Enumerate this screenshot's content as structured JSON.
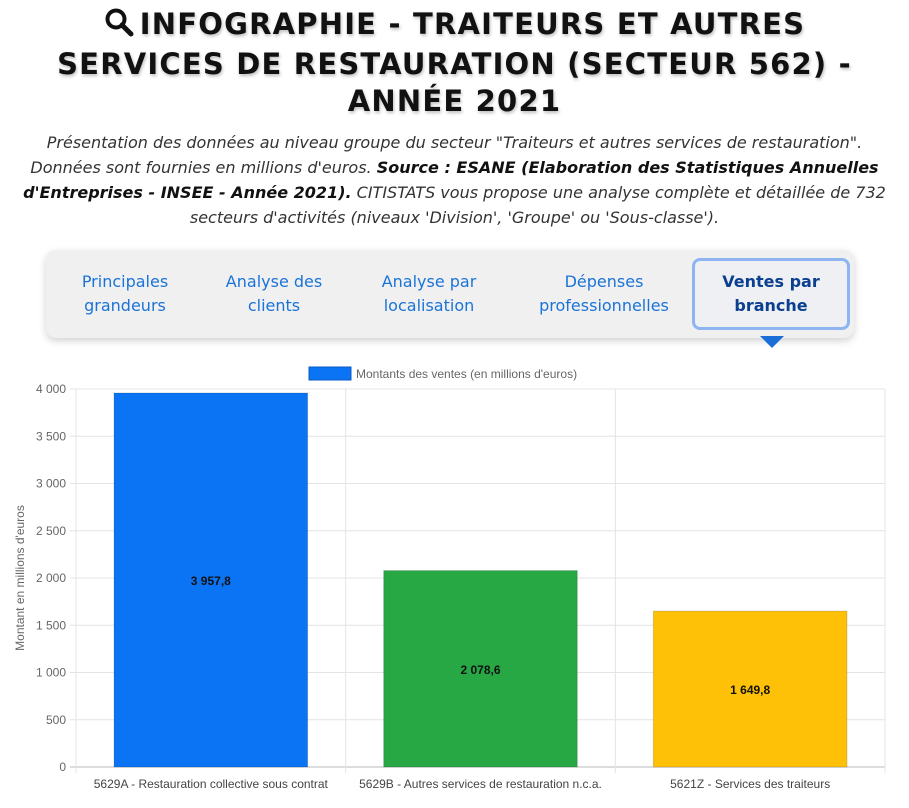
{
  "header": {
    "title_line1": "INFOGRAPHIE - TRAITEURS ET AUTRES",
    "title_line2": "SERVICES DE RESTAURATION (SECTEUR 562) -",
    "title_line3": "ANNÉE 2021",
    "icon": "search-icon"
  },
  "intro": {
    "part1": "Présentation des données au niveau groupe du secteur \"Traiteurs et autres services de restauration\". Données sont fournies en millions d'euros. ",
    "source": "Source : ESANE (Elaboration des Statistiques Annuelles d'Entreprises - INSEE - Année 2021).",
    "part2": " CITISTATS vous propose une analyse complète et détaillée de 732 secteurs d'activités (niveaux 'Division', 'Groupe' ou 'Sous-classe')."
  },
  "tabs": [
    {
      "label": "Principales grandeurs",
      "active": false
    },
    {
      "label": "Analyse des clients",
      "active": false
    },
    {
      "label": "Analyse par localisation",
      "active": false
    },
    {
      "label": "Dépenses professionnelles",
      "active": false
    },
    {
      "label": "Ventes par branche",
      "active": true
    }
  ],
  "colors": {
    "accent": "#1a73d9",
    "bar_colors": [
      "#0a74f5",
      "#28a745",
      "#ffc107"
    ]
  },
  "chart_data": {
    "type": "bar",
    "title": "",
    "categories": [
      "5629A - Restauration collective sous contrat",
      "5629B - Autres services de restauration n.c.a.",
      "5621Z - Services des traiteurs"
    ],
    "series": [
      {
        "name": "Montants des ventes (en millions d'euros)",
        "values": [
          3957.8,
          2078.6,
          1649.8
        ]
      }
    ],
    "data_labels": [
      "3 957,8",
      "2 078,6",
      "1 649,8"
    ],
    "xlabel": "",
    "ylabel": "Montant en millions d'euros",
    "ylim": [
      0,
      4000
    ],
    "yticks": [
      0,
      500,
      1000,
      1500,
      2000,
      2500,
      3000,
      3500,
      4000
    ],
    "ytick_labels": [
      "0",
      "500",
      "1 000",
      "1 500",
      "2 000",
      "2 500",
      "3 000",
      "3 500",
      "4 000"
    ],
    "grid": true,
    "legend": "top"
  }
}
